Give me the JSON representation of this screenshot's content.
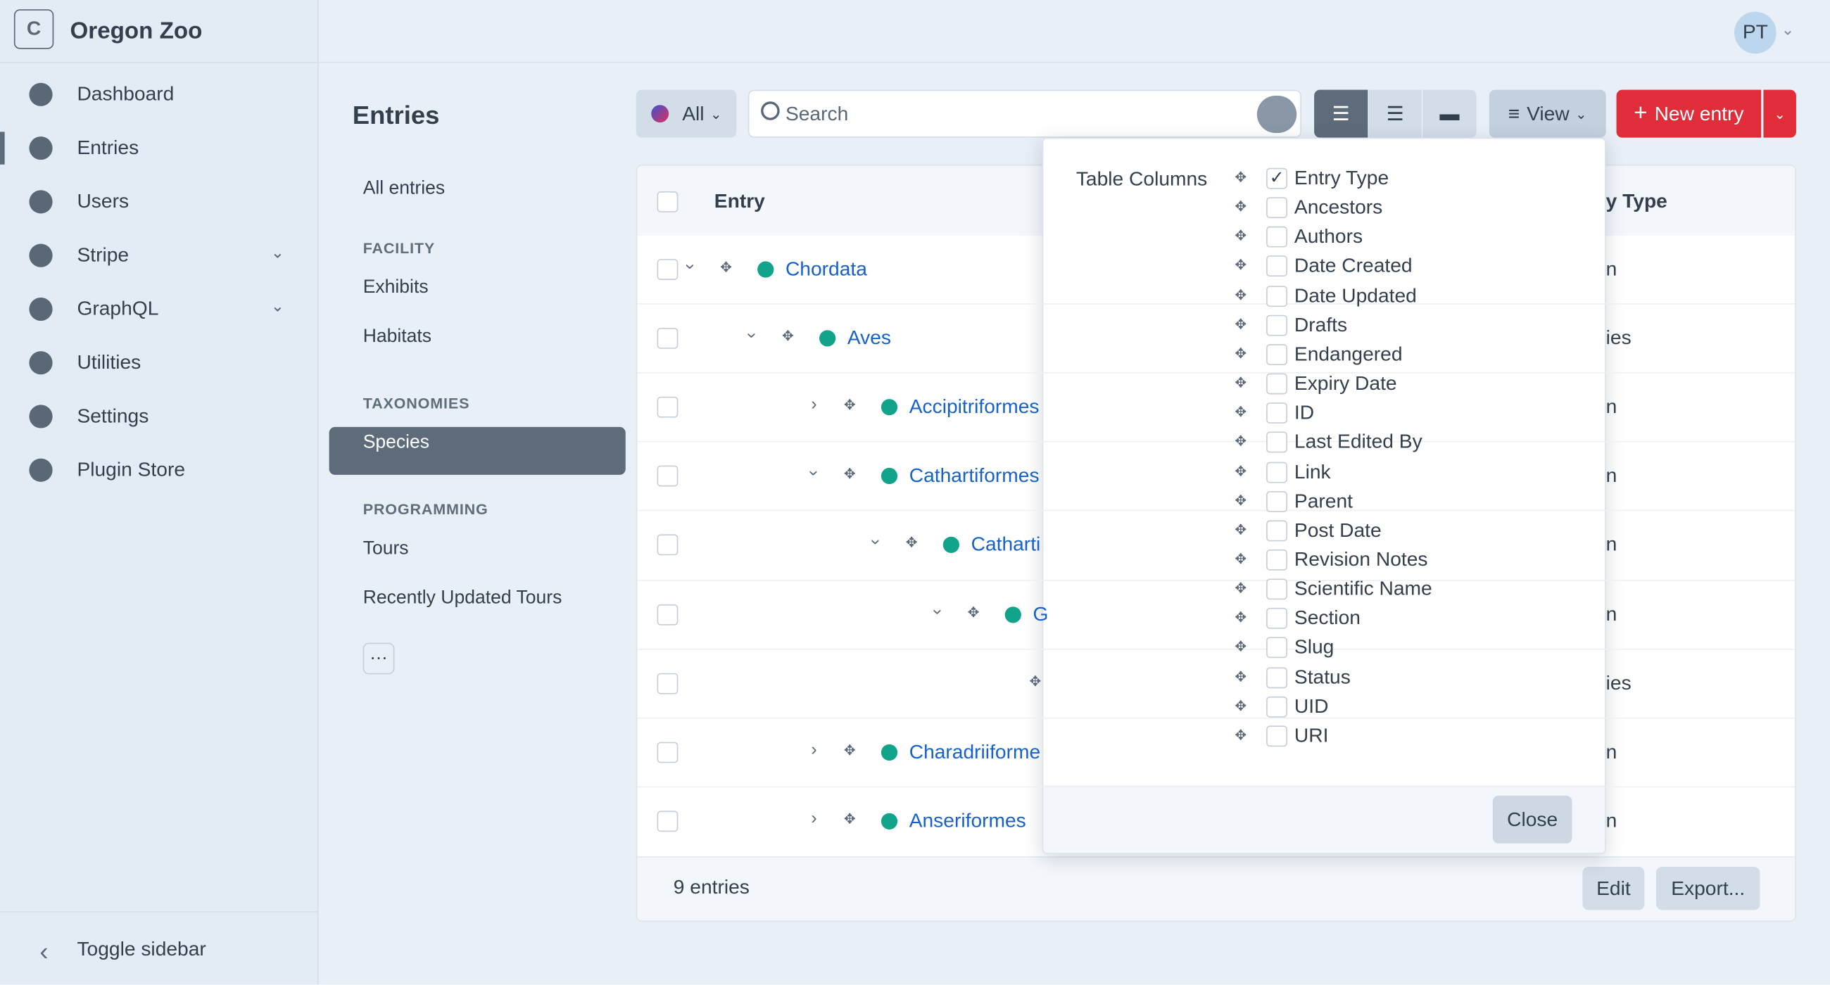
{
  "site": {
    "logo": "C",
    "name": "Oregon Zoo"
  },
  "nav": {
    "items": [
      {
        "label": "Dashboard"
      },
      {
        "label": "Entries",
        "active": true
      },
      {
        "label": "Users"
      },
      {
        "label": "Stripe",
        "submenu": true
      },
      {
        "label": "GraphQL",
        "submenu": true
      },
      {
        "label": "Utilities"
      },
      {
        "label": "Settings"
      },
      {
        "label": "Plugin Store"
      }
    ],
    "toggle": "Toggle sidebar"
  },
  "user": {
    "initials": "PT"
  },
  "page": {
    "title": "Entries"
  },
  "sources": {
    "all": "All entries",
    "groups": [
      {
        "heading": "FACILITY",
        "items": [
          "Exhibits",
          "Habitats"
        ]
      },
      {
        "heading": "TAXONOMIES",
        "items": [
          "Species"
        ],
        "selected": 0
      },
      {
        "heading": "PROGRAMMING",
        "items": [
          "Tours",
          "Recently Updated Tours"
        ]
      }
    ]
  },
  "toolbar": {
    "site": "All",
    "search": "Search",
    "view": "View",
    "new_entry": "New entry"
  },
  "table": {
    "header": {
      "entry": "Entry",
      "type": "y Type"
    },
    "rows": [
      {
        "title": "Chordata",
        "level": 0,
        "expanded": true,
        "type": "n"
      },
      {
        "title": "Aves",
        "level": 1,
        "expanded": true,
        "type": "ies"
      },
      {
        "title": "Accipitriformes",
        "level": 2,
        "expanded": false,
        "type": "n"
      },
      {
        "title": "Cathartiformes",
        "level": 2,
        "expanded": true,
        "type": "n"
      },
      {
        "title": "Catharti",
        "level": 3,
        "expanded": true,
        "type": "n"
      },
      {
        "title": "G",
        "level": 4,
        "expanded": true,
        "type": "n"
      },
      {
        "title": null,
        "level": 5,
        "expanded": null,
        "type": "ies"
      },
      {
        "title": "Charadriiforme",
        "level": 2,
        "expanded": false,
        "type": "n"
      },
      {
        "title": "Anseriformes",
        "level": 2,
        "expanded": false,
        "type": "n"
      }
    ],
    "footer": {
      "count": "9 entries",
      "edit": "Edit",
      "export": "Export..."
    }
  },
  "popup": {
    "label": "Table Columns",
    "columns": [
      {
        "name": "Entry Type",
        "checked": true
      },
      {
        "name": "Ancestors",
        "checked": false
      },
      {
        "name": "Authors",
        "checked": false
      },
      {
        "name": "Date Created",
        "checked": false
      },
      {
        "name": "Date Updated",
        "checked": false
      },
      {
        "name": "Drafts",
        "checked": false
      },
      {
        "name": "Endangered",
        "checked": false
      },
      {
        "name": "Expiry Date",
        "checked": false
      },
      {
        "name": "ID",
        "checked": false
      },
      {
        "name": "Last Edited By",
        "checked": false
      },
      {
        "name": "Link",
        "checked": false
      },
      {
        "name": "Parent",
        "checked": false
      },
      {
        "name": "Post Date",
        "checked": false
      },
      {
        "name": "Revision Notes",
        "checked": false
      },
      {
        "name": "Scientific Name",
        "checked": false
      },
      {
        "name": "Section",
        "checked": false
      },
      {
        "name": "Slug",
        "checked": false
      },
      {
        "name": "Status",
        "checked": false
      },
      {
        "name": "UID",
        "checked": false
      },
      {
        "name": "URI",
        "checked": false
      }
    ],
    "close": "Close"
  }
}
